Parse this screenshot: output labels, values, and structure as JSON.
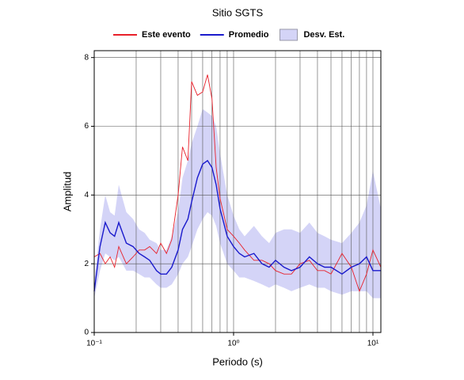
{
  "chart_data": {
    "type": "line",
    "title": "Sitio SGTS",
    "xlabel": "Periodo (s)",
    "ylabel": "Amplitud",
    "xscale": "log",
    "grid": true,
    "xlim": [
      0.1,
      11.4
    ],
    "ylim": [
      0,
      8.2
    ],
    "xticks": [
      {
        "value": 0.1,
        "label": "10⁻¹"
      },
      {
        "value": 1,
        "label": "10⁰"
      },
      {
        "value": 10,
        "label": "10¹"
      }
    ],
    "yticks": [
      0,
      2,
      4,
      6,
      8
    ],
    "x": [
      0.1,
      0.11,
      0.12,
      0.13,
      0.14,
      0.15,
      0.17,
      0.19,
      0.21,
      0.23,
      0.25,
      0.28,
      0.3,
      0.33,
      0.36,
      0.4,
      0.43,
      0.47,
      0.5,
      0.55,
      0.6,
      0.65,
      0.7,
      0.75,
      0.8,
      0.9,
      1.0,
      1.1,
      1.2,
      1.4,
      1.6,
      1.8,
      2.0,
      2.3,
      2.6,
      3.0,
      3.5,
      4.0,
      4.5,
      5.0,
      6.0,
      7.0,
      8.0,
      9.0,
      10.0,
      11.4
    ],
    "band": {
      "name": "Desv. Est.",
      "color": "#d4d4f7",
      "upper": [
        1.5,
        3.0,
        4.0,
        3.5,
        3.4,
        4.3,
        3.5,
        3.3,
        3.0,
        2.9,
        2.7,
        2.6,
        2.4,
        2.4,
        2.8,
        3.5,
        4.5,
        5.0,
        5.5,
        6.0,
        6.5,
        6.4,
        6.3,
        6.0,
        5.2,
        4.0,
        3.4,
        3.0,
        2.8,
        3.1,
        2.8,
        2.6,
        2.9,
        3.0,
        3.0,
        2.9,
        3.2,
        2.9,
        2.8,
        2.7,
        2.6,
        2.9,
        3.2,
        3.7,
        4.7,
        3.6
      ],
      "lower": [
        1.0,
        1.8,
        2.3,
        2.2,
        2.1,
        2.2,
        1.8,
        1.8,
        1.7,
        1.6,
        1.6,
        1.4,
        1.3,
        1.3,
        1.4,
        1.7,
        2.0,
        2.2,
        2.5,
        3.0,
        3.3,
        3.5,
        3.4,
        3.1,
        2.6,
        2.0,
        1.8,
        1.6,
        1.6,
        1.5,
        1.4,
        1.3,
        1.4,
        1.3,
        1.2,
        1.3,
        1.4,
        1.3,
        1.3,
        1.2,
        1.1,
        1.2,
        1.2,
        1.2,
        1.0,
        1.0
      ]
    },
    "series": [
      {
        "name": "Este evento",
        "color": "#e8202a",
        "values": [
          2.2,
          2.3,
          2.0,
          2.2,
          1.9,
          2.5,
          2.0,
          2.2,
          2.4,
          2.4,
          2.5,
          2.3,
          2.6,
          2.3,
          2.7,
          4.0,
          5.4,
          5.0,
          7.3,
          6.9,
          7.0,
          7.5,
          6.8,
          4.8,
          3.9,
          3.0,
          2.8,
          2.6,
          2.4,
          2.1,
          2.1,
          2.0,
          1.8,
          1.7,
          1.7,
          2.0,
          2.1,
          1.8,
          1.8,
          1.7,
          2.3,
          1.9,
          1.2,
          1.7,
          2.4,
          1.9
        ]
      },
      {
        "name": "Promedio",
        "color": "#1a1acc",
        "values": [
          1.2,
          2.5,
          3.2,
          2.9,
          2.8,
          3.2,
          2.6,
          2.5,
          2.3,
          2.2,
          2.1,
          1.8,
          1.7,
          1.7,
          1.9,
          2.4,
          3.0,
          3.3,
          3.8,
          4.5,
          4.9,
          5.0,
          4.8,
          4.3,
          3.6,
          2.8,
          2.5,
          2.3,
          2.2,
          2.3,
          2.0,
          1.9,
          2.1,
          1.9,
          1.8,
          1.9,
          2.2,
          2.0,
          1.9,
          1.9,
          1.7,
          1.9,
          2.0,
          2.2,
          1.8,
          1.8
        ]
      }
    ]
  }
}
